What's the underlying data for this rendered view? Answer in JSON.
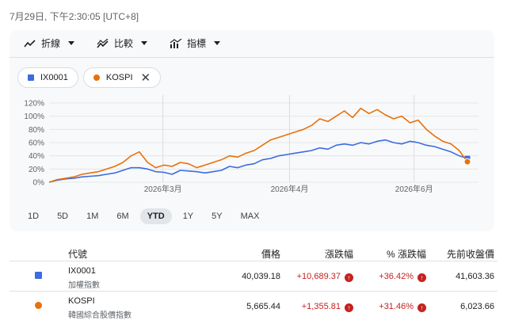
{
  "timestamp": "7月29日, 下午2:30:05 [UTC+8]",
  "toolbar": {
    "line_label": "折線",
    "compare_label": "比較",
    "indicators_label": "指標"
  },
  "chips": [
    {
      "name": "IX0001",
      "color": "#3b6ce0",
      "shape": "square"
    },
    {
      "name": "KOSPI",
      "color": "#e8710a",
      "shape": "circle",
      "removable": true
    }
  ],
  "ranges": [
    "1D",
    "5D",
    "1M",
    "6M",
    "YTD",
    "1Y",
    "5Y",
    "MAX"
  ],
  "active_range": "YTD",
  "chart_data": {
    "type": "line",
    "y_ticks": [
      "120%",
      "100%",
      "80%",
      "60%",
      "40%",
      "20%",
      "0%"
    ],
    "ylim": [
      0,
      120
    ],
    "x_ticks": [
      "2026年3月",
      "2026年4月",
      "2026年6月"
    ],
    "grid": true,
    "series": [
      {
        "name": "IX0001",
        "color": "#3b6ce0",
        "values": [
          0,
          3,
          5,
          6,
          8,
          9,
          10,
          12,
          14,
          18,
          22,
          22,
          20,
          16,
          15,
          12,
          18,
          17,
          16,
          14,
          16,
          18,
          24,
          22,
          26,
          28,
          34,
          36,
          40,
          42,
          44,
          46,
          48,
          52,
          50,
          56,
          58,
          56,
          60,
          58,
          62,
          64,
          60,
          58,
          62,
          60,
          56,
          54,
          50,
          46,
          40,
          36
        ]
      },
      {
        "name": "KOSPI",
        "color": "#e8710a",
        "values": [
          0,
          4,
          6,
          8,
          12,
          14,
          16,
          20,
          24,
          30,
          40,
          46,
          30,
          22,
          26,
          24,
          30,
          28,
          22,
          26,
          30,
          34,
          40,
          38,
          44,
          48,
          56,
          64,
          68,
          72,
          76,
          80,
          86,
          96,
          92,
          100,
          108,
          98,
          112,
          104,
          110,
          102,
          96,
          100,
          90,
          94,
          80,
          70,
          62,
          58,
          48,
          31
        ]
      }
    ]
  },
  "table": {
    "headers": {
      "symbol": "代號",
      "price": "價格",
      "change": "漲跌幅",
      "pct": "% 漲跌幅",
      "prev": "先前收盤價"
    },
    "rows": [
      {
        "symbol": "IX0001",
        "name": "加權指數",
        "price": "40,039.18",
        "change": "+10,689.37",
        "pct": "+36.42%",
        "prev": "41,603.36",
        "color": "#3b6ce0"
      },
      {
        "symbol": "KOSPI",
        "name": "韓國綜合股價指數",
        "price": "5,665.44",
        "change": "+1,355.81",
        "pct": "+31.46%",
        "prev": "6,023.66",
        "color": "#e8710a"
      }
    ]
  }
}
